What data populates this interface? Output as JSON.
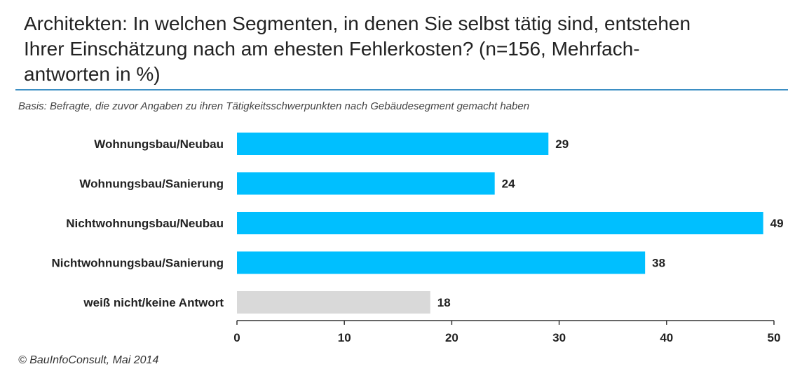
{
  "chart_data": {
    "type": "bar",
    "orientation": "horizontal",
    "title": "Architekten: In welchen Segmenten, in denen Sie selbst tätig sind, entstehen\nIhrer Einschätzung nach am ehesten Fehlerkosten? (n=156, Mehrfach-\nantworten in %)",
    "subtitle": "Basis: Befragte, die zuvor Angaben zu ihren Tätigkeitsschwerpunkten nach Gebäudesegment gemacht haben",
    "source": "© BauInfoConsult, Mai 2014",
    "categories": [
      "Wohnungsbau/Neubau",
      "Wohnungsbau/Sanierung",
      "Nichtwohnungsbau/Neubau",
      "Nichtwohnungsbau/Sanierung",
      "weiß nicht/keine Antwort"
    ],
    "values": [
      29,
      24,
      49,
      38,
      18
    ],
    "value_labels": [
      "29",
      "24",
      "49",
      "38",
      "18"
    ],
    "bar_colors": [
      "#00bfff",
      "#00bfff",
      "#00bfff",
      "#00bfff",
      "#d9d9d9"
    ],
    "xlim": [
      0,
      50
    ],
    "xticks": [
      0,
      10,
      20,
      30,
      40,
      50
    ],
    "xtick_labels": [
      "0",
      "10",
      "20",
      "30",
      "40",
      "50"
    ],
    "xlabel": "",
    "ylabel": "",
    "grid": false,
    "legend": "none"
  }
}
